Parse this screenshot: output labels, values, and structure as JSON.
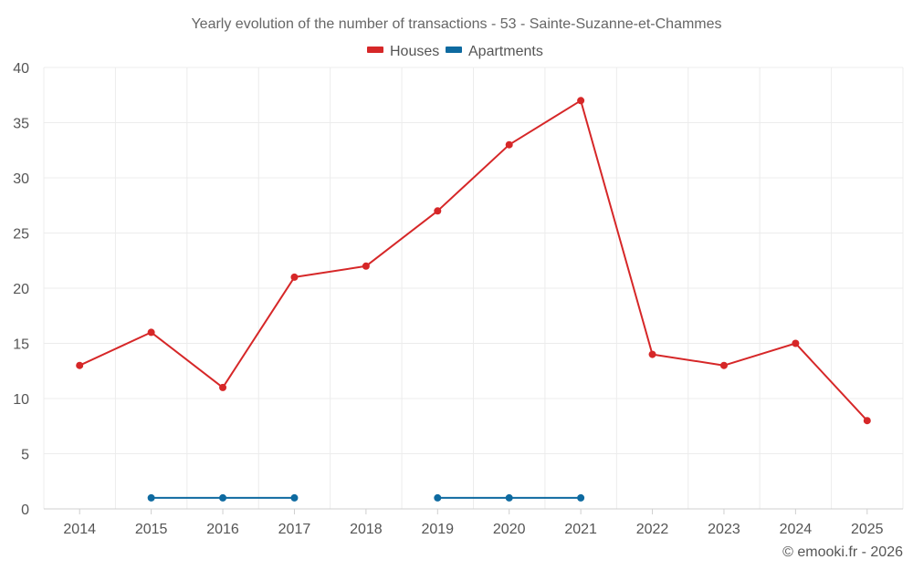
{
  "chart_data": {
    "type": "line",
    "title": "Yearly evolution of the number of transactions - 53 - Sainte-Suzanne-et-Chammes",
    "categories": [
      "2014",
      "2015",
      "2016",
      "2017",
      "2018",
      "2019",
      "2020",
      "2021",
      "2022",
      "2023",
      "2024",
      "2025"
    ],
    "ylim": [
      0,
      40
    ],
    "yticks": [
      0,
      5,
      10,
      15,
      20,
      25,
      30,
      35,
      40
    ],
    "grid": true,
    "legend_position": "top-center",
    "series": [
      {
        "name": "Houses",
        "color": "#d62728",
        "values": [
          13,
          16,
          11,
          21,
          22,
          27,
          33,
          37,
          14,
          13,
          15,
          8
        ]
      },
      {
        "name": "Apartments",
        "color": "#0e6aa0",
        "values": [
          null,
          1,
          1,
          1,
          null,
          1,
          1,
          1,
          null,
          null,
          null,
          null
        ]
      }
    ],
    "credit": "© emooki.fr - 2026"
  }
}
